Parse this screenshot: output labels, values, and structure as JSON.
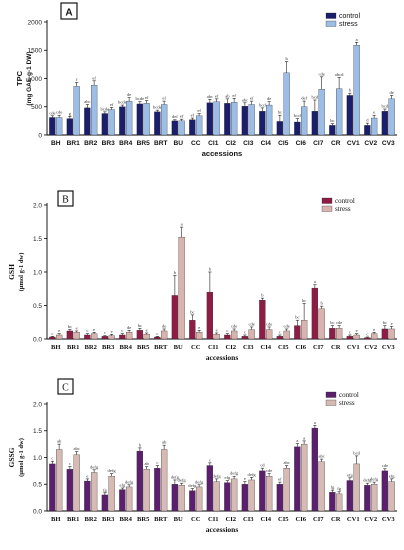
{
  "chart_data": [
    {
      "type": "bar",
      "panel_label": "A",
      "ylabel": "TPC",
      "ylabel2": "(mg GAE g-1 DW)",
      "xlabel": "accessions",
      "ylim": [
        0,
        2000
      ],
      "yticks": [
        "0",
        "500",
        "1000",
        "1500",
        "2000"
      ],
      "ytick_values": [
        0,
        500,
        1000,
        1500,
        2000
      ],
      "legend_position": "top-right",
      "categories": [
        "BH",
        "BR1",
        "BR2",
        "BR3",
        "BR4",
        "BR5",
        "BRT",
        "BU",
        "CC",
        "CI1",
        "CI2",
        "CI3",
        "CI4",
        "CI5",
        "CI6",
        "CI7",
        "CR",
        "CV1",
        "CV2",
        "CV3"
      ],
      "series": [
        {
          "name": "control",
          "color": "#1b1f6b",
          "values": [
            310,
            290,
            480,
            380,
            500,
            550,
            410,
            250,
            270,
            570,
            560,
            510,
            420,
            240,
            230,
            420,
            170,
            700,
            170,
            420
          ],
          "errors": [
            30,
            40,
            60,
            30,
            30,
            40,
            30,
            20,
            30,
            60,
            80,
            60,
            60,
            110,
            60,
            200,
            30,
            40,
            40,
            40
          ]
        },
        {
          "name": "stress",
          "color": "#9bbde6",
          "values": [
            310,
            860,
            880,
            450,
            600,
            560,
            540,
            250,
            340,
            590,
            580,
            540,
            530,
            1100,
            500,
            810,
            820,
            1590,
            300,
            640
          ],
          "errors": [
            40,
            70,
            80,
            40,
            60,
            50,
            60,
            30,
            40,
            50,
            70,
            60,
            60,
            200,
            100,
            220,
            200,
            50,
            50,
            60
          ]
        }
      ],
      "letters": [
        [
          "cde",
          "g",
          "abc",
          "bcde",
          "bcde",
          "bcde",
          "bcde",
          "def",
          "ef",
          "abc",
          "ab",
          "abc",
          "bcd",
          "bc",
          "bcd",
          "bcd",
          "bc",
          "b",
          "d",
          "bcd"
        ],
        [
          "cde",
          "f",
          "ef",
          "ef",
          "de",
          "ef",
          "ef",
          "ef",
          "ef",
          "ef",
          "ef",
          "ef",
          "de",
          "b",
          "def",
          "cde",
          "abcd",
          "a",
          "e",
          "de"
        ]
      ]
    },
    {
      "type": "bar",
      "panel_label": "B",
      "ylabel": "GSH",
      "ylabel2": "(µmol g-1 dw)",
      "xlabel": "accessions",
      "ylim": [
        0,
        2.0
      ],
      "yticks": [
        "0.0",
        "0.5",
        "1.0",
        "1.5",
        "2.0"
      ],
      "ytick_values": [
        0,
        0.5,
        1.0,
        1.5,
        2.0
      ],
      "legend_position": "top-right",
      "categories": [
        "BH",
        "BR1",
        "BR2",
        "BR3",
        "BR4",
        "BR5",
        "BRT",
        "BU",
        "CC",
        "CI1",
        "CI2",
        "CI3",
        "CI4",
        "CI5",
        "CI6",
        "CI7",
        "CR",
        "CV1",
        "CV2",
        "CV3"
      ],
      "series": [
        {
          "name": "control",
          "color": "#8e1c44",
          "values": [
            0.03,
            0.12,
            0.06,
            0.04,
            0.06,
            0.13,
            0.03,
            0.65,
            0.28,
            0.7,
            0.06,
            0.04,
            0.58,
            0.04,
            0.2,
            0.76,
            0.16,
            0.04,
            0.02,
            0.15
          ],
          "errors": [
            0.01,
            0.02,
            0.02,
            0.01,
            0.02,
            0.03,
            0.01,
            0.3,
            0.08,
            0.3,
            0.02,
            0.02,
            0.03,
            0.02,
            0.08,
            0.05,
            0.04,
            0.02,
            0.01,
            0.05
          ]
        },
        {
          "name": "stress",
          "color": "#d9b3ad",
          "values": [
            0.06,
            0.1,
            0.08,
            0.05,
            0.1,
            0.07,
            0.12,
            1.52,
            0.1,
            0.07,
            0.12,
            0.14,
            0.14,
            0.12,
            0.28,
            0.45,
            0.16,
            0.06,
            0.08,
            0.15
          ],
          "errors": [
            0.02,
            0.02,
            0.02,
            0.02,
            0.03,
            0.02,
            0.03,
            0.15,
            0.03,
            0.02,
            0.03,
            0.04,
            0.04,
            0.03,
            0.25,
            0.04,
            0.04,
            0.02,
            0.02,
            0.04
          ]
        }
      ],
      "letters": [
        [
          "c",
          "bc",
          "c",
          "c",
          "c",
          "bc",
          "c",
          "b",
          "bc",
          "b",
          "c",
          "c",
          "b",
          "c",
          "bc",
          "a",
          "bc",
          "c",
          "c",
          "bc"
        ],
        [
          "e",
          "e",
          "e",
          "e",
          "de",
          "e",
          "de",
          "a",
          "e",
          "e",
          "cde",
          "cde",
          "cde",
          "cde",
          "bc",
          "b",
          "cde",
          "e",
          "e",
          "e"
        ]
      ]
    },
    {
      "type": "bar",
      "panel_label": "C",
      "ylabel": "GSSG",
      "ylabel2": "(µmol g-1 dw)",
      "xlabel": "accessions",
      "ylim": [
        0,
        2.0
      ],
      "yticks": [
        "0.0",
        "0.5",
        "1.0",
        "1.5",
        "2.0"
      ],
      "ytick_values": [
        0,
        0.5,
        1.0,
        1.5,
        2.0
      ],
      "legend_position": "top-right",
      "categories": [
        "BH",
        "BR1",
        "BR2",
        "BR3",
        "BR4",
        "BR5",
        "BRT",
        "BU",
        "CC",
        "CI1",
        "CI2",
        "CI3",
        "CI4",
        "CI5",
        "CI6",
        "CI7",
        "CR",
        "CV1",
        "CV2",
        "CV3"
      ],
      "series": [
        {
          "name": "control",
          "color": "#5b1f6e",
          "values": [
            0.88,
            0.78,
            0.56,
            0.3,
            0.4,
            1.12,
            0.8,
            0.5,
            0.38,
            0.85,
            0.53,
            0.5,
            0.75,
            0.5,
            1.2,
            1.55,
            0.35,
            0.57,
            0.48,
            0.75
          ],
          "errors": [
            0.05,
            0.05,
            0.04,
            0.04,
            0.03,
            0.06,
            0.05,
            0.08,
            0.04,
            0.05,
            0.04,
            0.05,
            0.05,
            0.04,
            0.06,
            0.05,
            0.04,
            0.05,
            0.04,
            0.04
          ]
        },
        {
          "name": "stress",
          "color": "#d6bab3",
          "values": [
            1.15,
            1.05,
            0.72,
            0.65,
            0.45,
            0.78,
            1.15,
            0.48,
            0.45,
            0.55,
            0.6,
            0.58,
            0.65,
            0.8,
            1.25,
            0.92,
            0.32,
            0.88,
            0.5,
            0.55
          ],
          "errors": [
            0.1,
            0.06,
            0.05,
            0.05,
            0.04,
            0.05,
            0.08,
            0.04,
            0.04,
            0.05,
            0.05,
            0.05,
            0.05,
            0.05,
            0.06,
            0.05,
            0.04,
            0.15,
            0.04,
            0.05
          ]
        }
      ],
      "letters": [
        [
          "c",
          "c",
          "e",
          "fg",
          "efg",
          "b",
          "c",
          "defg",
          "defg",
          "c",
          "efg",
          "e",
          "cd",
          "ef",
          "a",
          "a",
          "fg",
          "efg",
          "defg",
          "cde"
        ],
        [
          "ab",
          "abc",
          "defg",
          "defg",
          "defg",
          "ab",
          "ab",
          "defg",
          "defg",
          "defg",
          "defg",
          "defg",
          "cde",
          "abc",
          "a",
          "abc",
          "fg",
          "bcd",
          "defg",
          "efg"
        ]
      ]
    }
  ]
}
